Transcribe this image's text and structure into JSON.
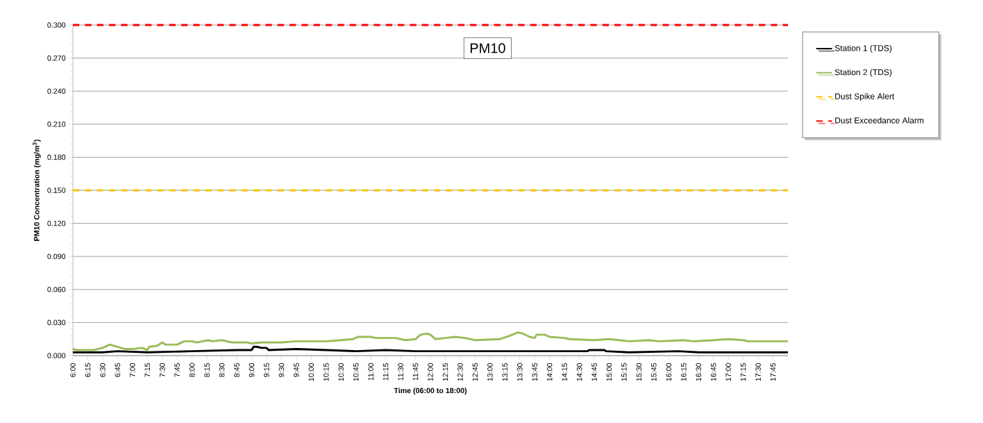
{
  "chart_data": {
    "type": "line",
    "xlabel": "Time (06:00 to 18:00)",
    "ylabel": "PM10 Concentration (mg/m$^{3}$)",
    "annotations": [
      "PM10"
    ],
    "series": [
      {
        "name": "Station 1 (TDS)",
        "color": "#000000",
        "x": [
          6.0,
          6.5,
          6.75,
          7.25,
          8.0,
          8.75,
          9.0,
          9.033,
          9.083,
          9.167,
          9.25,
          9.283,
          9.75,
          10.25,
          10.75,
          11.25,
          11.75,
          12.25,
          13.0,
          14.25,
          14.633,
          14.667,
          14.917,
          14.95,
          15.333,
          16.167,
          16.5,
          17.333,
          18.0
        ],
        "values": [
          0.003,
          0.003,
          0.004,
          0.003,
          0.004,
          0.005,
          0.005,
          0.008,
          0.008,
          0.007,
          0.007,
          0.005,
          0.006,
          0.005,
          0.004,
          0.005,
          0.004,
          0.004,
          0.004,
          0.004,
          0.004,
          0.005,
          0.005,
          0.004,
          0.003,
          0.004,
          0.003,
          0.003,
          0.003
        ]
      },
      {
        "name": "Station 2 (TDS)",
        "color": "#9bbb59",
        "x": [
          6.0,
          6.083,
          6.333,
          6.5,
          6.617,
          6.75,
          6.867,
          7.0,
          7.167,
          7.25,
          7.283,
          7.417,
          7.5,
          7.55,
          7.75,
          7.867,
          8.0,
          8.083,
          8.167,
          8.283,
          8.333,
          8.5,
          8.667,
          8.917,
          9.0,
          9.167,
          9.5,
          9.75,
          10.25,
          10.5,
          10.7,
          10.783,
          11.0,
          11.083,
          11.417,
          11.583,
          11.75,
          11.833,
          11.95,
          12.0,
          12.083,
          12.25,
          12.417,
          12.583,
          12.75,
          13.167,
          13.333,
          13.467,
          13.55,
          13.667,
          13.75,
          13.783,
          13.917,
          14.0,
          14.25,
          14.333,
          14.75,
          15.0,
          15.167,
          15.333,
          15.667,
          15.833,
          16.25,
          16.417,
          16.75,
          17.0,
          17.25,
          17.333,
          18.0
        ],
        "values": [
          0.006,
          0.005,
          0.005,
          0.007,
          0.01,
          0.008,
          0.006,
          0.006,
          0.007,
          0.005,
          0.008,
          0.009,
          0.012,
          0.01,
          0.01,
          0.013,
          0.013,
          0.012,
          0.013,
          0.014,
          0.013,
          0.014,
          0.012,
          0.012,
          0.011,
          0.012,
          0.012,
          0.013,
          0.013,
          0.014,
          0.015,
          0.017,
          0.017,
          0.016,
          0.016,
          0.014,
          0.015,
          0.019,
          0.02,
          0.019,
          0.015,
          0.016,
          0.017,
          0.016,
          0.014,
          0.015,
          0.018,
          0.021,
          0.02,
          0.017,
          0.016,
          0.019,
          0.019,
          0.017,
          0.016,
          0.015,
          0.014,
          0.015,
          0.014,
          0.013,
          0.014,
          0.013,
          0.014,
          0.013,
          0.014,
          0.015,
          0.014,
          0.013,
          0.013
        ]
      }
    ],
    "ref_lines": [
      {
        "axis": "y",
        "value": 0.15,
        "label": "Dust Spike Alert",
        "color": "#ffc000",
        "line_style": "dashed"
      },
      {
        "axis": "y",
        "value": 0.3,
        "label": "Dust Exceedance Alarm",
        "color": "#ff0000",
        "line_style": "dashed"
      }
    ],
    "xlim": [
      6,
      18
    ],
    "xticks": [
      {
        "value": 6.0,
        "label": "6:00"
      },
      {
        "value": 6.25,
        "label": "6:15"
      },
      {
        "value": 6.5,
        "label": "6:30"
      },
      {
        "value": 6.75,
        "label": "6:45"
      },
      {
        "value": 7.0,
        "label": "7:00"
      },
      {
        "value": 7.25,
        "label": "7:15"
      },
      {
        "value": 7.5,
        "label": "7:30"
      },
      {
        "value": 7.75,
        "label": "7:45"
      },
      {
        "value": 8.0,
        "label": "8:00"
      },
      {
        "value": 8.25,
        "label": "8:15"
      },
      {
        "value": 8.5,
        "label": "8:30"
      },
      {
        "value": 8.75,
        "label": "8:45"
      },
      {
        "value": 9.0,
        "label": "9:00"
      },
      {
        "value": 9.25,
        "label": "9:15"
      },
      {
        "value": 9.5,
        "label": "9:30"
      },
      {
        "value": 9.75,
        "label": "9:45"
      },
      {
        "value": 10.0,
        "label": "10:00"
      },
      {
        "value": 10.25,
        "label": "10:15"
      },
      {
        "value": 10.5,
        "label": "10:30"
      },
      {
        "value": 10.75,
        "label": "10:45"
      },
      {
        "value": 11.0,
        "label": "11:00"
      },
      {
        "value": 11.25,
        "label": "11:15"
      },
      {
        "value": 11.5,
        "label": "11:30"
      },
      {
        "value": 11.75,
        "label": "11:45"
      },
      {
        "value": 12.0,
        "label": "12:00"
      },
      {
        "value": 12.25,
        "label": "12:15"
      },
      {
        "value": 12.5,
        "label": "12:30"
      },
      {
        "value": 12.75,
        "label": "12:45"
      },
      {
        "value": 13.0,
        "label": "13:00"
      },
      {
        "value": 13.25,
        "label": "13:15"
      },
      {
        "value": 13.5,
        "label": "13:30"
      },
      {
        "value": 13.75,
        "label": "13:45"
      },
      {
        "value": 14.0,
        "label": "14:00"
      },
      {
        "value": 14.25,
        "label": "14:15"
      },
      {
        "value": 14.5,
        "label": "14:30"
      },
      {
        "value": 14.75,
        "label": "14:45"
      },
      {
        "value": 15.0,
        "label": "15:00"
      },
      {
        "value": 15.25,
        "label": "15:15"
      },
      {
        "value": 15.5,
        "label": "15:30"
      },
      {
        "value": 15.75,
        "label": "15:45"
      },
      {
        "value": 16.0,
        "label": "16:00"
      },
      {
        "value": 16.25,
        "label": "16:15"
      },
      {
        "value": 16.5,
        "label": "16:30"
      },
      {
        "value": 16.75,
        "label": "16:45"
      },
      {
        "value": 17.0,
        "label": "17:00"
      },
      {
        "value": 17.25,
        "label": "17:15"
      },
      {
        "value": 17.5,
        "label": "17:30"
      },
      {
        "value": 17.75,
        "label": "17:45"
      }
    ],
    "ylim": [
      0,
      0.3
    ],
    "yticks": [
      {
        "value": 0,
        "label": "0.000"
      },
      {
        "value": 0.03,
        "label": "0.030"
      },
      {
        "value": 0.06,
        "label": "0.060"
      },
      {
        "value": 0.09,
        "label": "0.090"
      },
      {
        "value": 0.12,
        "label": "0.120"
      },
      {
        "value": 0.15,
        "label": "0.150"
      },
      {
        "value": 0.18,
        "label": "0.180"
      },
      {
        "value": 0.21,
        "label": "0.210"
      },
      {
        "value": 0.24,
        "label": "0.240"
      },
      {
        "value": 0.27,
        "label": "0.270"
      },
      {
        "value": 0.3,
        "label": "0.300"
      }
    ],
    "grid": "y",
    "legend": "right",
    "line_style": "solid"
  }
}
